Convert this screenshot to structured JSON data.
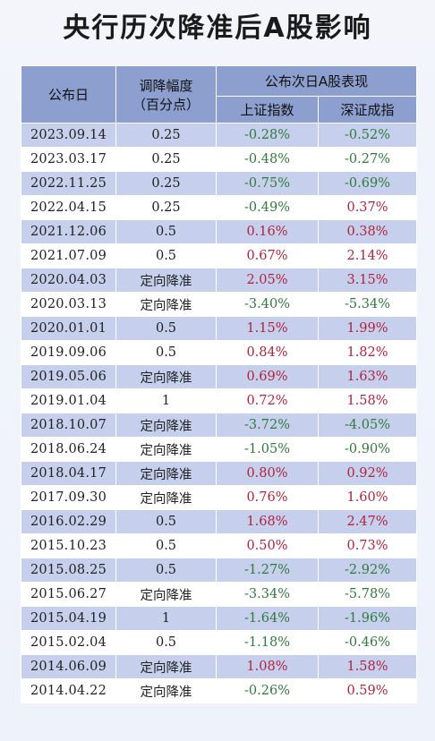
{
  "title": "央行历次降准后A股影响",
  "header": {
    "date": "公布日",
    "cut_line1": "调降幅度",
    "cut_line2": "（百分点）",
    "group": "公布次日A股表现",
    "sh": "上证指数",
    "sz": "深证成指"
  },
  "colors": {
    "header_bg": "#8d9fcf",
    "row_alt_bg": "#c6d0ec",
    "negative": "#2f7a3c",
    "positive": "#b2233c"
  },
  "rows": [
    {
      "date": "2023.09.14",
      "cut": "0.25",
      "sh": "-0.28%",
      "sz": "-0.52%"
    },
    {
      "date": "2023.03.17",
      "cut": "0.25",
      "sh": "-0.48%",
      "sz": "-0.27%"
    },
    {
      "date": "2022.11.25",
      "cut": "0.25",
      "sh": "-0.75%",
      "sz": "-0.69%"
    },
    {
      "date": "2022.04.15",
      "cut": "0.25",
      "sh": "-0.49%",
      "sz": "0.37%"
    },
    {
      "date": "2021.12.06",
      "cut": "0.5",
      "sh": "0.16%",
      "sz": "0.38%"
    },
    {
      "date": "2021.07.09",
      "cut": "0.5",
      "sh": "0.67%",
      "sz": "2.14%"
    },
    {
      "date": "2020.04.03",
      "cut": "定向降准",
      "sh": "2.05%",
      "sz": "3.15%"
    },
    {
      "date": "2020.03.13",
      "cut": "定向降准",
      "sh": "-3.40%",
      "sz": "-5.34%"
    },
    {
      "date": "2020.01.01",
      "cut": "0.5",
      "sh": "1.15%",
      "sz": "1.99%"
    },
    {
      "date": "2019.09.06",
      "cut": "0.5",
      "sh": "0.84%",
      "sz": "1.82%"
    },
    {
      "date": "2019.05.06",
      "cut": "定向降准",
      "sh": "0.69%",
      "sz": "1.63%"
    },
    {
      "date": "2019.01.04",
      "cut": "1",
      "sh": "0.72%",
      "sz": "1.58%"
    },
    {
      "date": "2018.10.07",
      "cut": "定向降准",
      "sh": "-3.72%",
      "sz": "-4.05%"
    },
    {
      "date": "2018.06.24",
      "cut": "定向降准",
      "sh": "-1.05%",
      "sz": "-0.90%"
    },
    {
      "date": "2018.04.17",
      "cut": "定向降准",
      "sh": "0.80%",
      "sz": "0.92%"
    },
    {
      "date": "2017.09.30",
      "cut": "定向降准",
      "sh": "0.76%",
      "sz": "1.60%"
    },
    {
      "date": "2016.02.29",
      "cut": "0.5",
      "sh": "1.68%",
      "sz": "2.47%"
    },
    {
      "date": "2015.10.23",
      "cut": "0.5",
      "sh": "0.50%",
      "sz": "0.73%"
    },
    {
      "date": "2015.08.25",
      "cut": "0.5",
      "sh": "-1.27%",
      "sz": "-2.92%"
    },
    {
      "date": "2015.06.27",
      "cut": "定向降准",
      "sh": "-3.34%",
      "sz": "-5.78%"
    },
    {
      "date": "2015.04.19",
      "cut": "1",
      "sh": "-1.64%",
      "sz": "-1.96%"
    },
    {
      "date": "2015.02.04",
      "cut": "0.5",
      "sh": "-1.18%",
      "sz": "-0.46%"
    },
    {
      "date": "2014.06.09",
      "cut": "定向降准",
      "sh": "1.08%",
      "sz": "1.58%"
    },
    {
      "date": "2014.04.22",
      "cut": "定向降准",
      "sh": "-0.26%",
      "sz": "0.59%"
    }
  ]
}
